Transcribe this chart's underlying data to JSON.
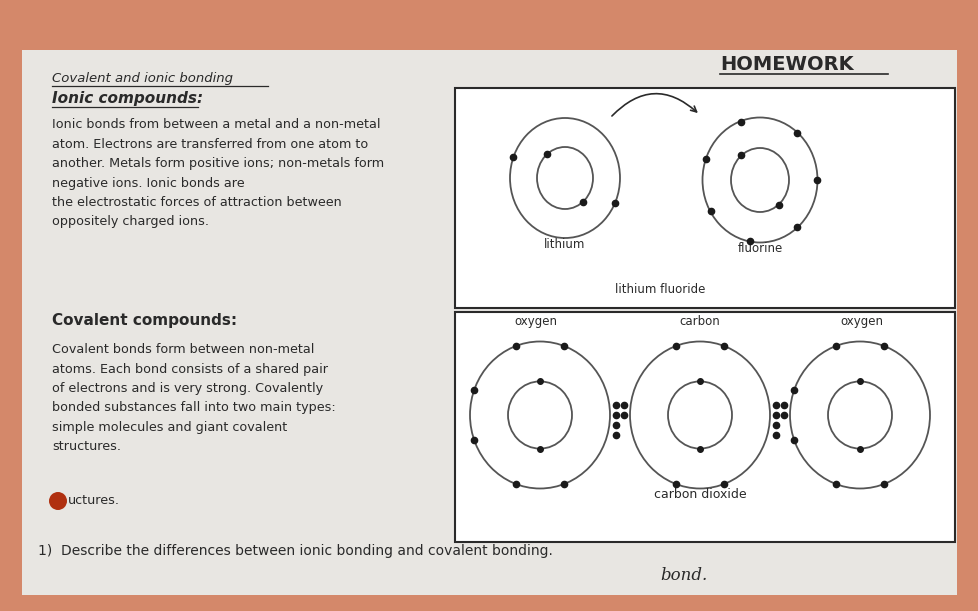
{
  "bg_color": "#d4886a",
  "paper_color": "#e8e6e2",
  "title": "Covalent and ionic bonding",
  "homework_label": "HOMEWORK",
  "ionic_header": "Ionic compounds:",
  "ionic_text": "Ionic bonds from between a metal and a non-metal\natom. Electrons are transferred from one atom to\nanother. Metals form positive ions; non-metals form\nnegative ions. Ionic bonds are\nthe electrostatic forces of attraction between\noppositely charged ions.",
  "covalent_header": "Covalent compounds:",
  "covalent_text": "Covalent bonds form between non-metal\natoms. Each bond consists of a shared pair\nof electrons and is very strong. Covalently\nbonded substances fall into two main types:\nsimple molecules and giant covalent\nstructures.",
  "question": "1)  Describe the differences between ionic bonding and covalent bonding.",
  "handwriting": "bond.",
  "lithium_label": "lithium",
  "fluorine_label": "fluorine",
  "lithium_fluoride_label": "lithium fluoride",
  "oxygen_label": "oxygen",
  "carbon_label": "carbon",
  "carbon_dioxide_label": "carbon dioxide",
  "text_color": "#2a2a2a"
}
